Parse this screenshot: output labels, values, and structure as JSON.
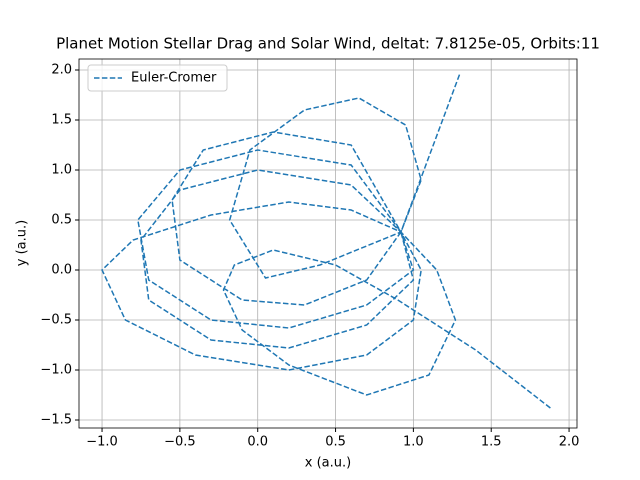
{
  "chart_data": {
    "type": "line",
    "title": "Planet Motion Stellar Drag and Solar Wind, deltat: 7.8125e-05, Orbits:11",
    "xlabel": "x (a.u.)",
    "ylabel": "y (a.u.)",
    "x": [
      1.88,
      1.4,
      0.9,
      0.5,
      0.1,
      -0.15,
      -0.22,
      -0.1,
      0.2,
      0.7,
      1.1,
      1.27,
      1.15,
      0.92,
      0.6,
      0.2,
      -0.3,
      -0.8,
      -1.0,
      -0.85,
      -0.4,
      0.2,
      0.7,
      1.0,
      1.05,
      0.92,
      0.6,
      0.0,
      -0.5,
      -0.75,
      -0.7,
      -0.3,
      0.2,
      0.7,
      1.0,
      0.92,
      0.6,
      0.0,
      -0.5,
      -0.77,
      -0.7,
      -0.3,
      0.2,
      0.7,
      1.0,
      0.92,
      0.6,
      0.1,
      -0.35,
      -0.55,
      -0.5,
      -0.1,
      0.3,
      0.7,
      0.92,
      1.05,
      0.95,
      0.65,
      0.3,
      -0.05,
      -0.18,
      0.05,
      0.4,
      0.92,
      1.3
    ],
    "series": [
      {
        "name": "Euler-Cromer",
        "color": "#1f77b4",
        "style": "dashed",
        "values": [
          -1.38,
          -0.8,
          -0.3,
          0.05,
          0.2,
          0.05,
          -0.2,
          -0.6,
          -0.95,
          -1.25,
          -1.05,
          -0.5,
          0.0,
          0.38,
          0.6,
          0.68,
          0.55,
          0.3,
          0.0,
          -0.5,
          -0.85,
          -1.0,
          -0.85,
          -0.5,
          0.0,
          0.38,
          0.85,
          1.0,
          0.8,
          0.3,
          -0.3,
          -0.7,
          -0.78,
          -0.55,
          -0.1,
          0.38,
          1.05,
          1.2,
          1.0,
          0.5,
          -0.1,
          -0.5,
          -0.58,
          -0.35,
          0.0,
          0.38,
          1.25,
          1.38,
          1.2,
          0.7,
          0.1,
          -0.3,
          -0.35,
          -0.1,
          0.38,
          0.9,
          1.45,
          1.72,
          1.6,
          1.2,
          0.5,
          -0.08,
          0.05,
          0.38,
          1.97
        ]
      }
    ],
    "xlim": [
      -1.148,
      2.051
    ],
    "ylim": [
      -1.58,
      2.11
    ],
    "xticks": [
      {
        "value": -1.0,
        "label": "−1.0"
      },
      {
        "value": -0.5,
        "label": "−0.5"
      },
      {
        "value": 0.0,
        "label": "0.0"
      },
      {
        "value": 0.5,
        "label": "0.5"
      },
      {
        "value": 1.0,
        "label": "1.0"
      },
      {
        "value": 1.5,
        "label": "1.5"
      },
      {
        "value": 2.0,
        "label": "2.0"
      }
    ],
    "yticks": [
      {
        "value": -1.5,
        "label": "−1.5"
      },
      {
        "value": -1.0,
        "label": "−1.0"
      },
      {
        "value": -0.5,
        "label": "−0.5"
      },
      {
        "value": 0.0,
        "label": "0.0"
      },
      {
        "value": 0.5,
        "label": "0.5"
      },
      {
        "value": 1.0,
        "label": "1.0"
      },
      {
        "value": 1.5,
        "label": "1.5"
      },
      {
        "value": 2.0,
        "label": "2.0"
      }
    ],
    "grid": true,
    "legend": "upper-left"
  }
}
